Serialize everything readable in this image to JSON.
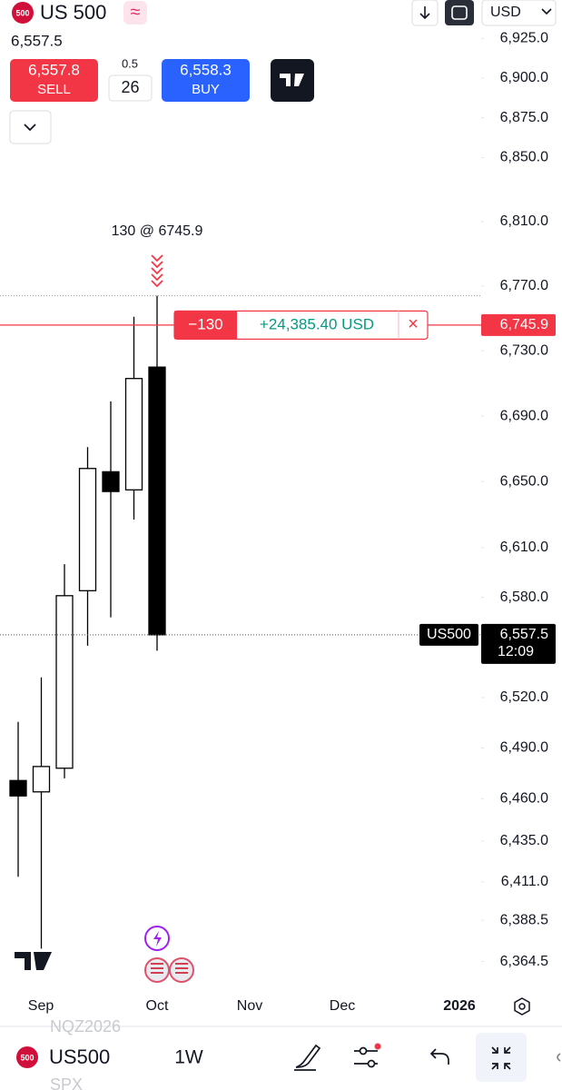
{
  "header": {
    "logo": "500",
    "symbol": "US 500",
    "icon": "≈",
    "last_price": "6,557.5",
    "sell_price": "6,557.8",
    "sell_label": "SELL",
    "spread_top": "0.5",
    "spread_bottom": "26",
    "buy_price": "6,558.3",
    "buy_label": "BUY",
    "currency": "USD"
  },
  "chart_data": {
    "type": "candlestick",
    "categories": [
      null,
      null,
      null,
      null,
      null,
      null,
      null
    ],
    "series": [
      {
        "open": [
          6470.7,
          6464,
          6478,
          6584,
          6656,
          6645,
          6720
        ],
        "high": [
          6505.5,
          6532,
          6600,
          6671,
          6699,
          6751,
          6764
        ],
        "low": [
          6414,
          6372,
          6472,
          6551,
          6568,
          6627,
          6548
        ],
        "close": [
          6461.6,
          6479,
          6581,
          6658,
          6644,
          6713,
          6557.5
        ]
      }
    ],
    "ylim": [
      6350,
      6950
    ],
    "log_scale": true,
    "yticks": [
      {
        "value": 6925,
        "label": "6,925.0"
      },
      {
        "value": 6900,
        "label": "6,900.0"
      },
      {
        "value": 6875,
        "label": "6,875.0"
      },
      {
        "value": 6850,
        "label": "6,850.0"
      },
      {
        "value": 6810,
        "label": "6,810.0"
      },
      {
        "value": 6770,
        "label": "6,770.0"
      },
      {
        "value": 6730,
        "label": "6,730.0"
      },
      {
        "value": 6690,
        "label": "6,690.0"
      },
      {
        "value": 6650,
        "label": "6,650.0"
      },
      {
        "value": 6610,
        "label": "6,610.0"
      },
      {
        "value": 6580,
        "label": "6,580.0"
      },
      {
        "value": 6520,
        "label": "6,520.0"
      },
      {
        "value": 6490,
        "label": "6,490.0"
      },
      {
        "value": 6460,
        "label": "6,460.0"
      },
      {
        "value": 6435,
        "label": "6,435.0"
      },
      {
        "value": 6411,
        "label": "6,411.0"
      },
      {
        "value": 6388.5,
        "label": "6,388.5"
      },
      {
        "value": 6364.5,
        "label": "6,364.5"
      }
    ],
    "x_labels": [
      "Sep",
      "Oct",
      "Nov",
      "Dec",
      "2026"
    ],
    "annotation": "130 @ 6745.9",
    "order": {
      "quantity": "−130",
      "pnl": "+24,385.40 USD",
      "close": "×",
      "price": 6745.9,
      "price_label": "6,745.9"
    },
    "last": {
      "symbol": "US500",
      "price": 6557.5,
      "price_label": "6,557.5",
      "countdown": "12:09"
    },
    "up_color": "#ffffff",
    "down_color": "#000000"
  },
  "footer": {
    "logo": "500",
    "faded_top": "NQZ2026",
    "symbol": "US500",
    "interval": "1W",
    "faded_bottom": "SPX"
  }
}
